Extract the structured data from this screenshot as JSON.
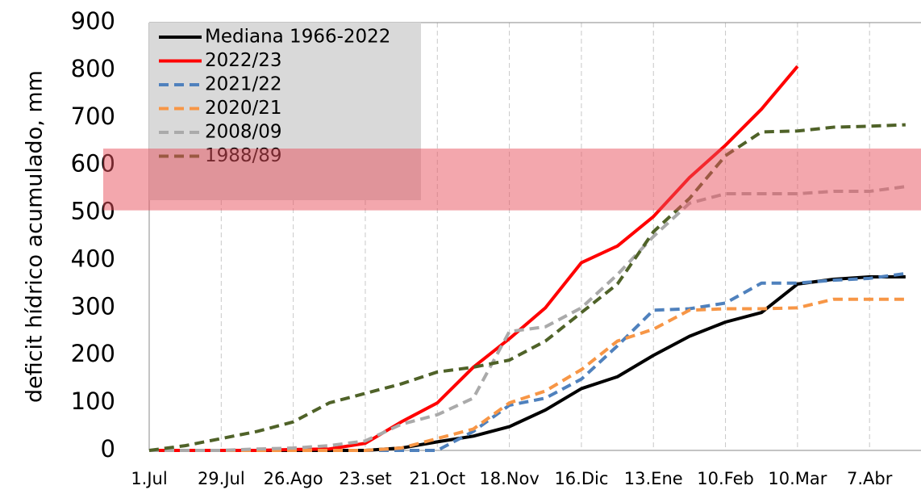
{
  "chart_data": {
    "type": "line",
    "y_label": "deficit hídrico acumulado, mm",
    "x": [
      0,
      14,
      28,
      42,
      56,
      70,
      84,
      98,
      112,
      126,
      140,
      154,
      168,
      182,
      196,
      210,
      224,
      238,
      252,
      266,
      280,
      294
    ],
    "xlim": [
      0,
      300
    ],
    "xticks": [
      {
        "value": 0,
        "label": "1.Jul"
      },
      {
        "value": 28,
        "label": "29.Jul"
      },
      {
        "value": 56,
        "label": "26.Ago"
      },
      {
        "value": 84,
        "label": "23.set"
      },
      {
        "value": 112,
        "label": "21.Oct"
      },
      {
        "value": 140,
        "label": "18.Nov"
      },
      {
        "value": 168,
        "label": "16.Dic"
      },
      {
        "value": 196,
        "label": "13.Ene"
      },
      {
        "value": 224,
        "label": "10.Feb"
      },
      {
        "value": 252,
        "label": "10.Mar"
      },
      {
        "value": 280,
        "label": "7.Abr"
      }
    ],
    "ylim": [
      0,
      900
    ],
    "yticks": [
      0,
      100,
      200,
      300,
      400,
      500,
      600,
      700,
      800,
      900
    ],
    "x_grid": true,
    "legend": "top-left",
    "band": [
      505,
      635
    ],
    "band_color": "#e8505b",
    "series": [
      {
        "name": "Mediana 1966-2022",
        "color": "#000000",
        "style": "solid",
        "values": [
          0,
          0,
          0,
          0,
          0,
          0,
          0,
          5,
          18,
          30,
          50,
          85,
          130,
          155,
          200,
          240,
          270,
          290,
          350,
          360,
          365,
          365
        ]
      },
      {
        "name": "2022/23",
        "color": "#ff0000",
        "style": "solid",
        "values": [
          0,
          0,
          0,
          0,
          2,
          3,
          15,
          60,
          100,
          175,
          235,
          300,
          395,
          430,
          492,
          574,
          642,
          718,
          808,
          null,
          null,
          null
        ]
      },
      {
        "name": "2021/22",
        "color": "#4f81bd",
        "style": "dashed",
        "values": [
          0,
          0,
          0,
          0,
          0,
          0,
          0,
          0,
          0,
          40,
          95,
          110,
          150,
          220,
          295,
          298,
          310,
          352,
          352,
          358,
          362,
          372
        ]
      },
      {
        "name": "2020/21",
        "color": "#f79646",
        "style": "dashed",
        "values": [
          0,
          0,
          0,
          0,
          0,
          0,
          0,
          5,
          25,
          45,
          100,
          125,
          170,
          230,
          255,
          295,
          298,
          298,
          300,
          318,
          318,
          318
        ]
      },
      {
        "name": "2008/09",
        "color": "#aaaaaa",
        "style": "dashed",
        "values": [
          0,
          0,
          0,
          3,
          5,
          10,
          20,
          55,
          75,
          110,
          250,
          260,
          300,
          370,
          450,
          520,
          540,
          540,
          540,
          545,
          545,
          555
        ]
      },
      {
        "name": "1988/89",
        "color": "#4f6228",
        "style": "dashed",
        "values": [
          0,
          10,
          25,
          40,
          60,
          100,
          120,
          140,
          165,
          175,
          190,
          230,
          290,
          350,
          460,
          530,
          620,
          670,
          672,
          680,
          682,
          685
        ]
      }
    ]
  }
}
